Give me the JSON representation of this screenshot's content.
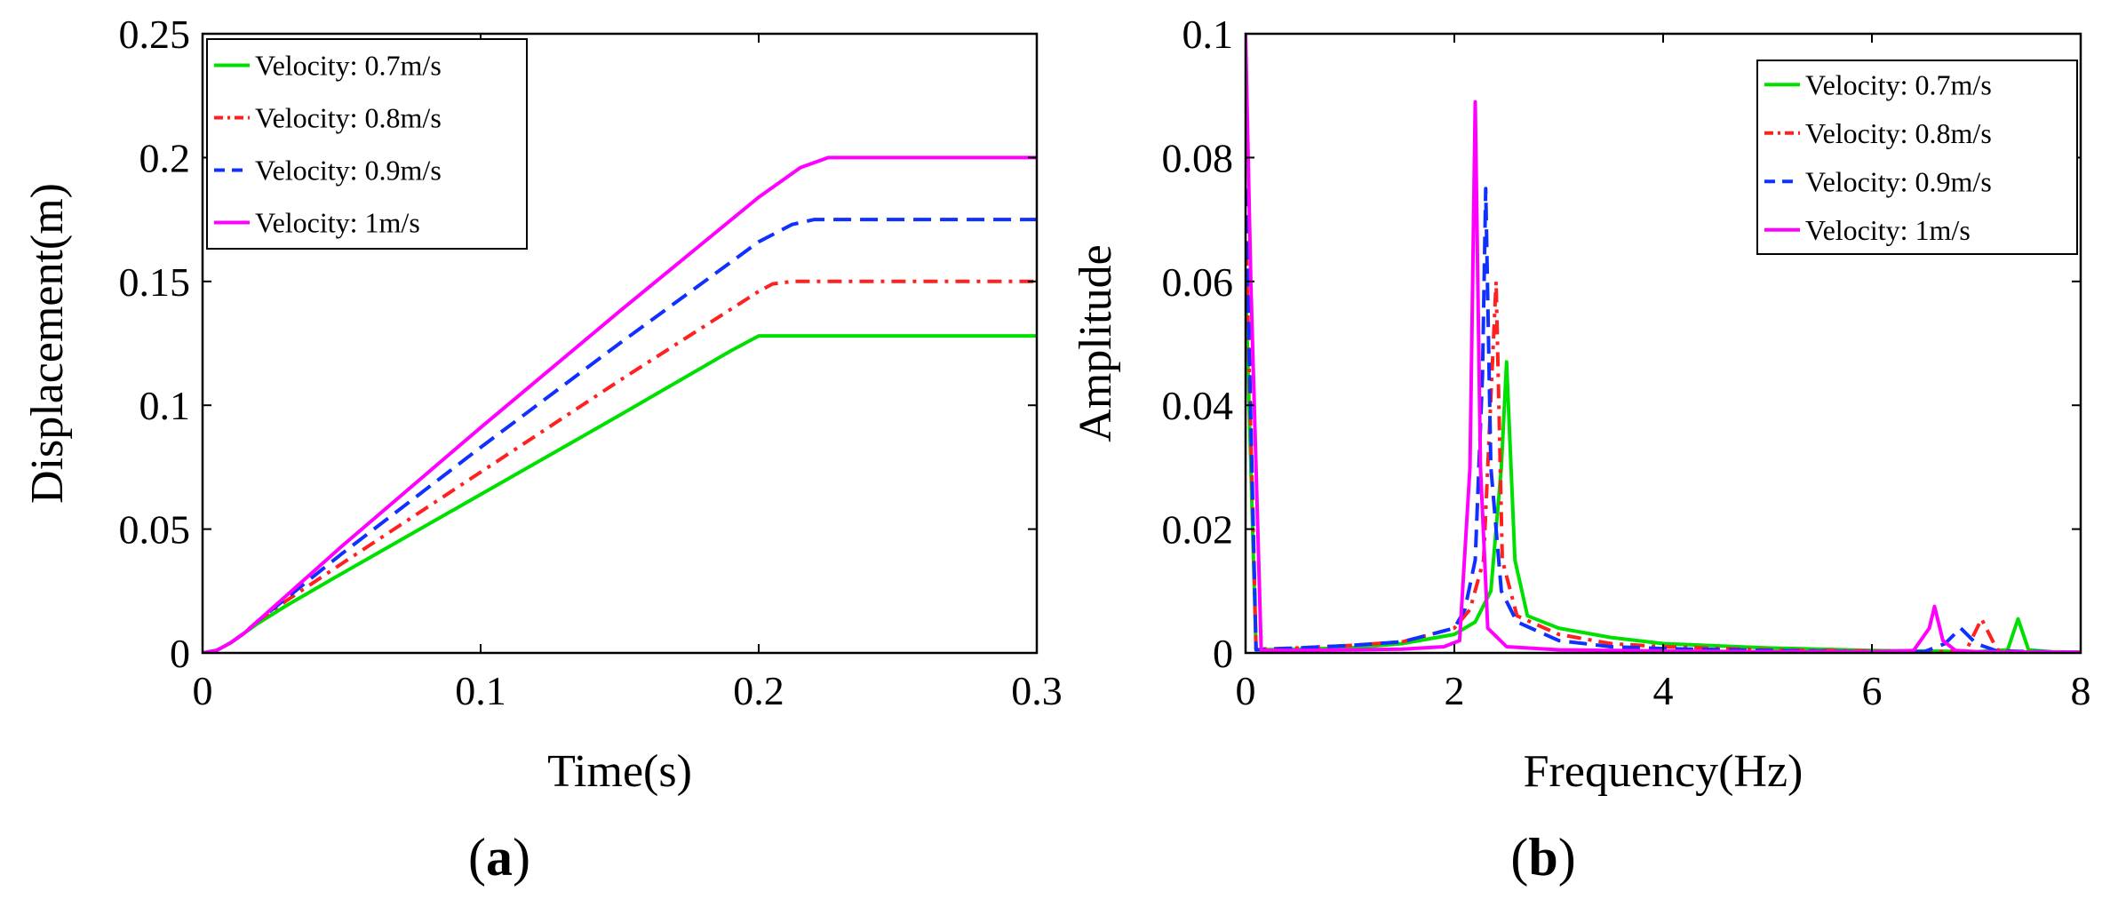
{
  "chart_data": [
    {
      "type": "line",
      "panel_label": {
        "open": "(",
        "letter": "a",
        "close": ")"
      },
      "xlabel": "Time(s)",
      "ylabel": "Displacement(m)",
      "xlim": [
        0,
        0.3
      ],
      "ylim": [
        0,
        0.25
      ],
      "xticks": [
        0,
        0.1,
        0.2,
        0.3
      ],
      "xtick_labels": [
        "0",
        "0.1",
        "0.2",
        "0.3"
      ],
      "yticks": [
        0,
        0.05,
        0.1,
        0.15,
        0.2,
        0.25
      ],
      "ytick_labels": [
        "0",
        "0.05",
        "0.1",
        "0.15",
        "0.2",
        "0.25"
      ],
      "grid": false,
      "legend_position": "top-left",
      "series": [
        {
          "name": "Velocity: 0.7m/s",
          "color": "#00e000",
          "dash": "solid",
          "x": [
            0,
            0.005,
            0.01,
            0.015,
            0.02,
            0.03,
            0.05,
            0.1,
            0.15,
            0.19,
            0.2,
            0.21,
            0.3
          ],
          "y": [
            0,
            0.001,
            0.004,
            0.008,
            0.012,
            0.019,
            0.032,
            0.064,
            0.096,
            0.122,
            0.128,
            0.128,
            0.128
          ]
        },
        {
          "name": "Velocity: 0.8m/s",
          "color": "#ff2020",
          "dash": "dashdot",
          "x": [
            0,
            0.005,
            0.01,
            0.015,
            0.02,
            0.03,
            0.05,
            0.1,
            0.15,
            0.2,
            0.205,
            0.212,
            0.3
          ],
          "y": [
            0,
            0.001,
            0.004,
            0.008,
            0.013,
            0.021,
            0.036,
            0.073,
            0.11,
            0.146,
            0.149,
            0.15,
            0.15
          ]
        },
        {
          "name": "Velocity: 0.9m/s",
          "color": "#1030ff",
          "dash": "dashed",
          "x": [
            0,
            0.005,
            0.01,
            0.015,
            0.02,
            0.03,
            0.05,
            0.1,
            0.15,
            0.2,
            0.212,
            0.22,
            0.3
          ],
          "y": [
            0,
            0.001,
            0.004,
            0.008,
            0.013,
            0.022,
            0.04,
            0.083,
            0.125,
            0.166,
            0.173,
            0.175,
            0.175
          ]
        },
        {
          "name": "Velocity: 1m/s",
          "color": "#ff00ff",
          "dash": "solid",
          "x": [
            0,
            0.005,
            0.01,
            0.015,
            0.02,
            0.03,
            0.05,
            0.1,
            0.15,
            0.2,
            0.215,
            0.225,
            0.3
          ],
          "y": [
            0,
            0.001,
            0.004,
            0.008,
            0.013,
            0.023,
            0.043,
            0.091,
            0.138,
            0.184,
            0.196,
            0.2,
            0.2
          ]
        }
      ]
    },
    {
      "type": "line",
      "panel_label": {
        "open": "(",
        "letter": "b",
        "close": ")"
      },
      "xlabel": "Frequency(Hz)",
      "ylabel": "Amplitude",
      "xlim": [
        0,
        8
      ],
      "ylim": [
        0,
        0.1
      ],
      "xticks": [
        0,
        2,
        4,
        6,
        8
      ],
      "xtick_labels": [
        "0",
        "2",
        "4",
        "6",
        "8"
      ],
      "yticks": [
        0,
        0.02,
        0.04,
        0.06,
        0.08,
        0.1
      ],
      "ytick_labels": [
        "0",
        "0.02",
        "0.04",
        "0.06",
        "0.08",
        "0.1"
      ],
      "grid": false,
      "legend_position": "top-right",
      "series": [
        {
          "name": "Velocity: 0.7m/s",
          "color": "#00e000",
          "dash": "solid",
          "x": [
            0,
            0.1,
            0.5,
            1.0,
            1.5,
            2.0,
            2.2,
            2.35,
            2.45,
            2.5,
            2.58,
            2.7,
            3.0,
            3.5,
            4.0,
            5.0,
            6.0,
            6.5,
            7.0,
            7.3,
            7.4,
            7.5,
            7.7,
            8.0
          ],
          "y": [
            0.06,
            0.0005,
            0.0006,
            0.0008,
            0.0015,
            0.003,
            0.005,
            0.01,
            0.03,
            0.047,
            0.015,
            0.006,
            0.004,
            0.0025,
            0.0015,
            0.0008,
            0.0004,
            0.0003,
            0.0002,
            0.0005,
            0.0055,
            0.0005,
            0.0002,
            0.0001
          ]
        },
        {
          "name": "Velocity: 0.8m/s",
          "color": "#ff2020",
          "dash": "dashdot",
          "x": [
            0,
            0.1,
            0.5,
            1.0,
            1.5,
            2.0,
            2.15,
            2.28,
            2.36,
            2.4,
            2.46,
            2.6,
            3.0,
            3.5,
            4.0,
            5.0,
            6.0,
            6.5,
            6.9,
            7.05,
            7.2,
            7.4,
            8.0
          ],
          "y": [
            0.07,
            0.0006,
            0.0008,
            0.0012,
            0.0018,
            0.004,
            0.007,
            0.015,
            0.045,
            0.06,
            0.015,
            0.006,
            0.003,
            0.0015,
            0.001,
            0.0005,
            0.0003,
            0.0002,
            0.0003,
            0.0055,
            0.0005,
            0.0002,
            0.0001
          ]
        },
        {
          "name": "Velocity: 0.9m/s",
          "color": "#1030ff",
          "dash": "dashed",
          "x": [
            0,
            0.1,
            0.5,
            1.0,
            1.5,
            2.0,
            2.1,
            2.2,
            2.27,
            2.3,
            2.35,
            2.45,
            2.6,
            3.0,
            3.5,
            4.0,
            5.0,
            6.0,
            6.5,
            6.7,
            6.85,
            7.0,
            7.2,
            8.0
          ],
          "y": [
            0.075,
            0.0005,
            0.0008,
            0.0012,
            0.0018,
            0.004,
            0.007,
            0.015,
            0.045,
            0.075,
            0.03,
            0.01,
            0.005,
            0.002,
            0.001,
            0.0007,
            0.0004,
            0.0002,
            0.0002,
            0.0015,
            0.004,
            0.0015,
            0.0003,
            0.0001
          ]
        },
        {
          "name": "Velocity: 1m/s",
          "color": "#ff00ff",
          "dash": "solid",
          "x": [
            0,
            0.05,
            0.15,
            0.5,
            1.0,
            1.5,
            1.9,
            2.05,
            2.15,
            2.2,
            2.25,
            2.32,
            2.5,
            3.0,
            4.0,
            5.0,
            6.0,
            6.4,
            6.55,
            6.6,
            6.68,
            6.8,
            7.0,
            8.0
          ],
          "y": [
            0.1,
            0.06,
            0.0004,
            0.0004,
            0.0005,
            0.0006,
            0.001,
            0.002,
            0.03,
            0.089,
            0.03,
            0.004,
            0.001,
            0.0005,
            0.0003,
            0.0002,
            0.0002,
            0.0004,
            0.004,
            0.0075,
            0.002,
            0.0004,
            0.0002,
            0.0001
          ]
        }
      ]
    }
  ]
}
